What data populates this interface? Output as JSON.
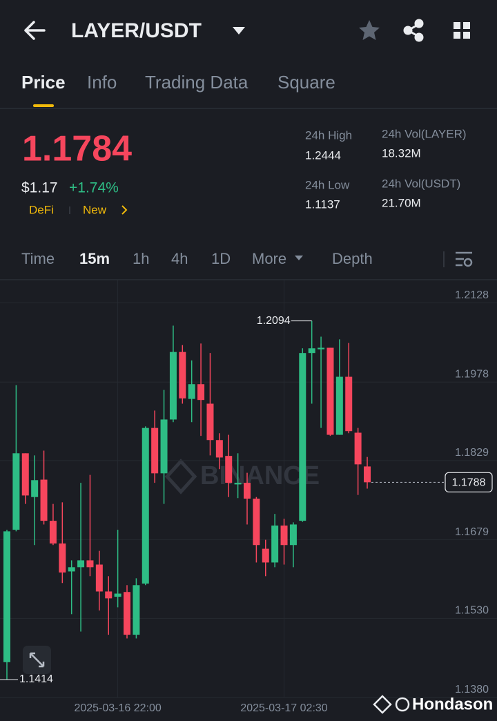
{
  "header": {
    "title": "LAYER/USDT"
  },
  "tabs": [
    "Price",
    "Info",
    "Trading Data",
    "Square"
  ],
  "ticker": {
    "price": "1.1784",
    "fiat": "$1.17",
    "change": "+1.74%",
    "tags": [
      "DeFi",
      "New"
    ]
  },
  "stats": [
    {
      "label": "24h High",
      "value": "1.2444"
    },
    {
      "label": "24h Vol(LAYER)",
      "value": "18.32M"
    },
    {
      "label": "24h Low",
      "value": "1.1137"
    },
    {
      "label": "24h Vol(USDT)",
      "value": "21.70M"
    }
  ],
  "intervals": [
    "Time",
    "15m",
    "1h",
    "4h",
    "1D",
    "More",
    "Depth"
  ],
  "chart_data": {
    "type": "candlestick",
    "categories": [
      null,
      null,
      null,
      null,
      null,
      null,
      null,
      null,
      null,
      null,
      null,
      null,
      "2025-03-16 22:00",
      null,
      null,
      null,
      null,
      null,
      null,
      null,
      null,
      null,
      null,
      null,
      null,
      null,
      null,
      null,
      null,
      null,
      "2025-03-17 02:30",
      null,
      null,
      null,
      null,
      null,
      null,
      null,
      null,
      null
    ],
    "open": [
      1.1447,
      1.1698,
      1.1843,
      1.176,
      1.1793,
      1.1715,
      1.1672,
      1.1619,
      1.1627,
      1.164,
      1.1632,
      1.1581,
      1.1571,
      1.158,
      1.1499,
      1.1596,
      1.1891,
      1.1805,
      1.1907,
      1.2035,
      1.1946,
      1.1974,
      1.1937,
      1.1868,
      1.1838,
      1.1784,
      1.1787,
      1.1757,
      1.1662,
      1.1636,
      1.1706,
      1.1669,
      1.1715,
      1.2033,
      1.204,
      1.2043,
      1.1878,
      1.1988,
      1.1882,
      1.1818
    ],
    "high": [
      1.1698,
      1.1972,
      1.1843,
      1.1839,
      1.1848,
      1.1747,
      1.175,
      1.164,
      1.1787,
      1.1802,
      1.1658,
      1.161,
      1.1698,
      1.1593,
      1.1606,
      1.1894,
      1.1924,
      1.1963,
      1.2085,
      1.2048,
      1.2019,
      1.2051,
      1.2033,
      1.1881,
      1.1878,
      1.1843,
      1.1806,
      1.176,
      1.1679,
      1.1728,
      1.1719,
      1.1712,
      1.2042,
      1.2094,
      1.2064,
      1.2043,
      1.2059,
      1.2052,
      1.1891,
      1.1836
    ],
    "low": [
      1.1414,
      1.1695,
      1.1747,
      1.1669,
      1.1708,
      1.1669,
      1.1597,
      1.1538,
      1.1505,
      1.161,
      1.1545,
      1.1499,
      1.1551,
      1.1492,
      1.1492,
      1.1593,
      1.1787,
      1.1747,
      1.1902,
      1.1937,
      1.1902,
      1.1876,
      1.1839,
      1.1813,
      1.176,
      1.1758,
      1.1708,
      1.1636,
      1.161,
      1.1627,
      1.1632,
      1.1627,
      1.1713,
      1.1937,
      1.1891,
      1.1876,
      1.1878,
      1.1881,
      1.1764,
      1.1776
    ],
    "close": [
      1.1695,
      1.1843,
      1.1763,
      1.1792,
      1.1715,
      1.1672,
      1.1617,
      1.1627,
      1.164,
      1.1627,
      1.1581,
      1.1568,
      1.1577,
      1.1499,
      1.1593,
      1.1891,
      1.1805,
      1.1907,
      1.2035,
      1.1947,
      1.1974,
      1.1944,
      1.1868,
      1.1835,
      1.1787,
      1.1787,
      1.1757,
      1.1669,
      1.1636,
      1.1706,
      1.1669,
      1.1708,
      1.2033,
      1.2042,
      1.2043,
      1.1878,
      1.1988,
      1.1885,
      1.1822,
      1.1788
    ],
    "up_color": "#2ebd85",
    "down_color": "#f6465d",
    "ylim": [
      1.138,
      1.2172
    ],
    "yticks": [
      1.2128,
      1.1978,
      1.1829,
      1.1679,
      {
        "value": 1.153,
        "label": "1.1530"
      },
      {
        "value": 1.138,
        "label": "1.1380"
      }
    ],
    "grid": true
  },
  "watermark": "BINANCE",
  "footer": "Hondason"
}
